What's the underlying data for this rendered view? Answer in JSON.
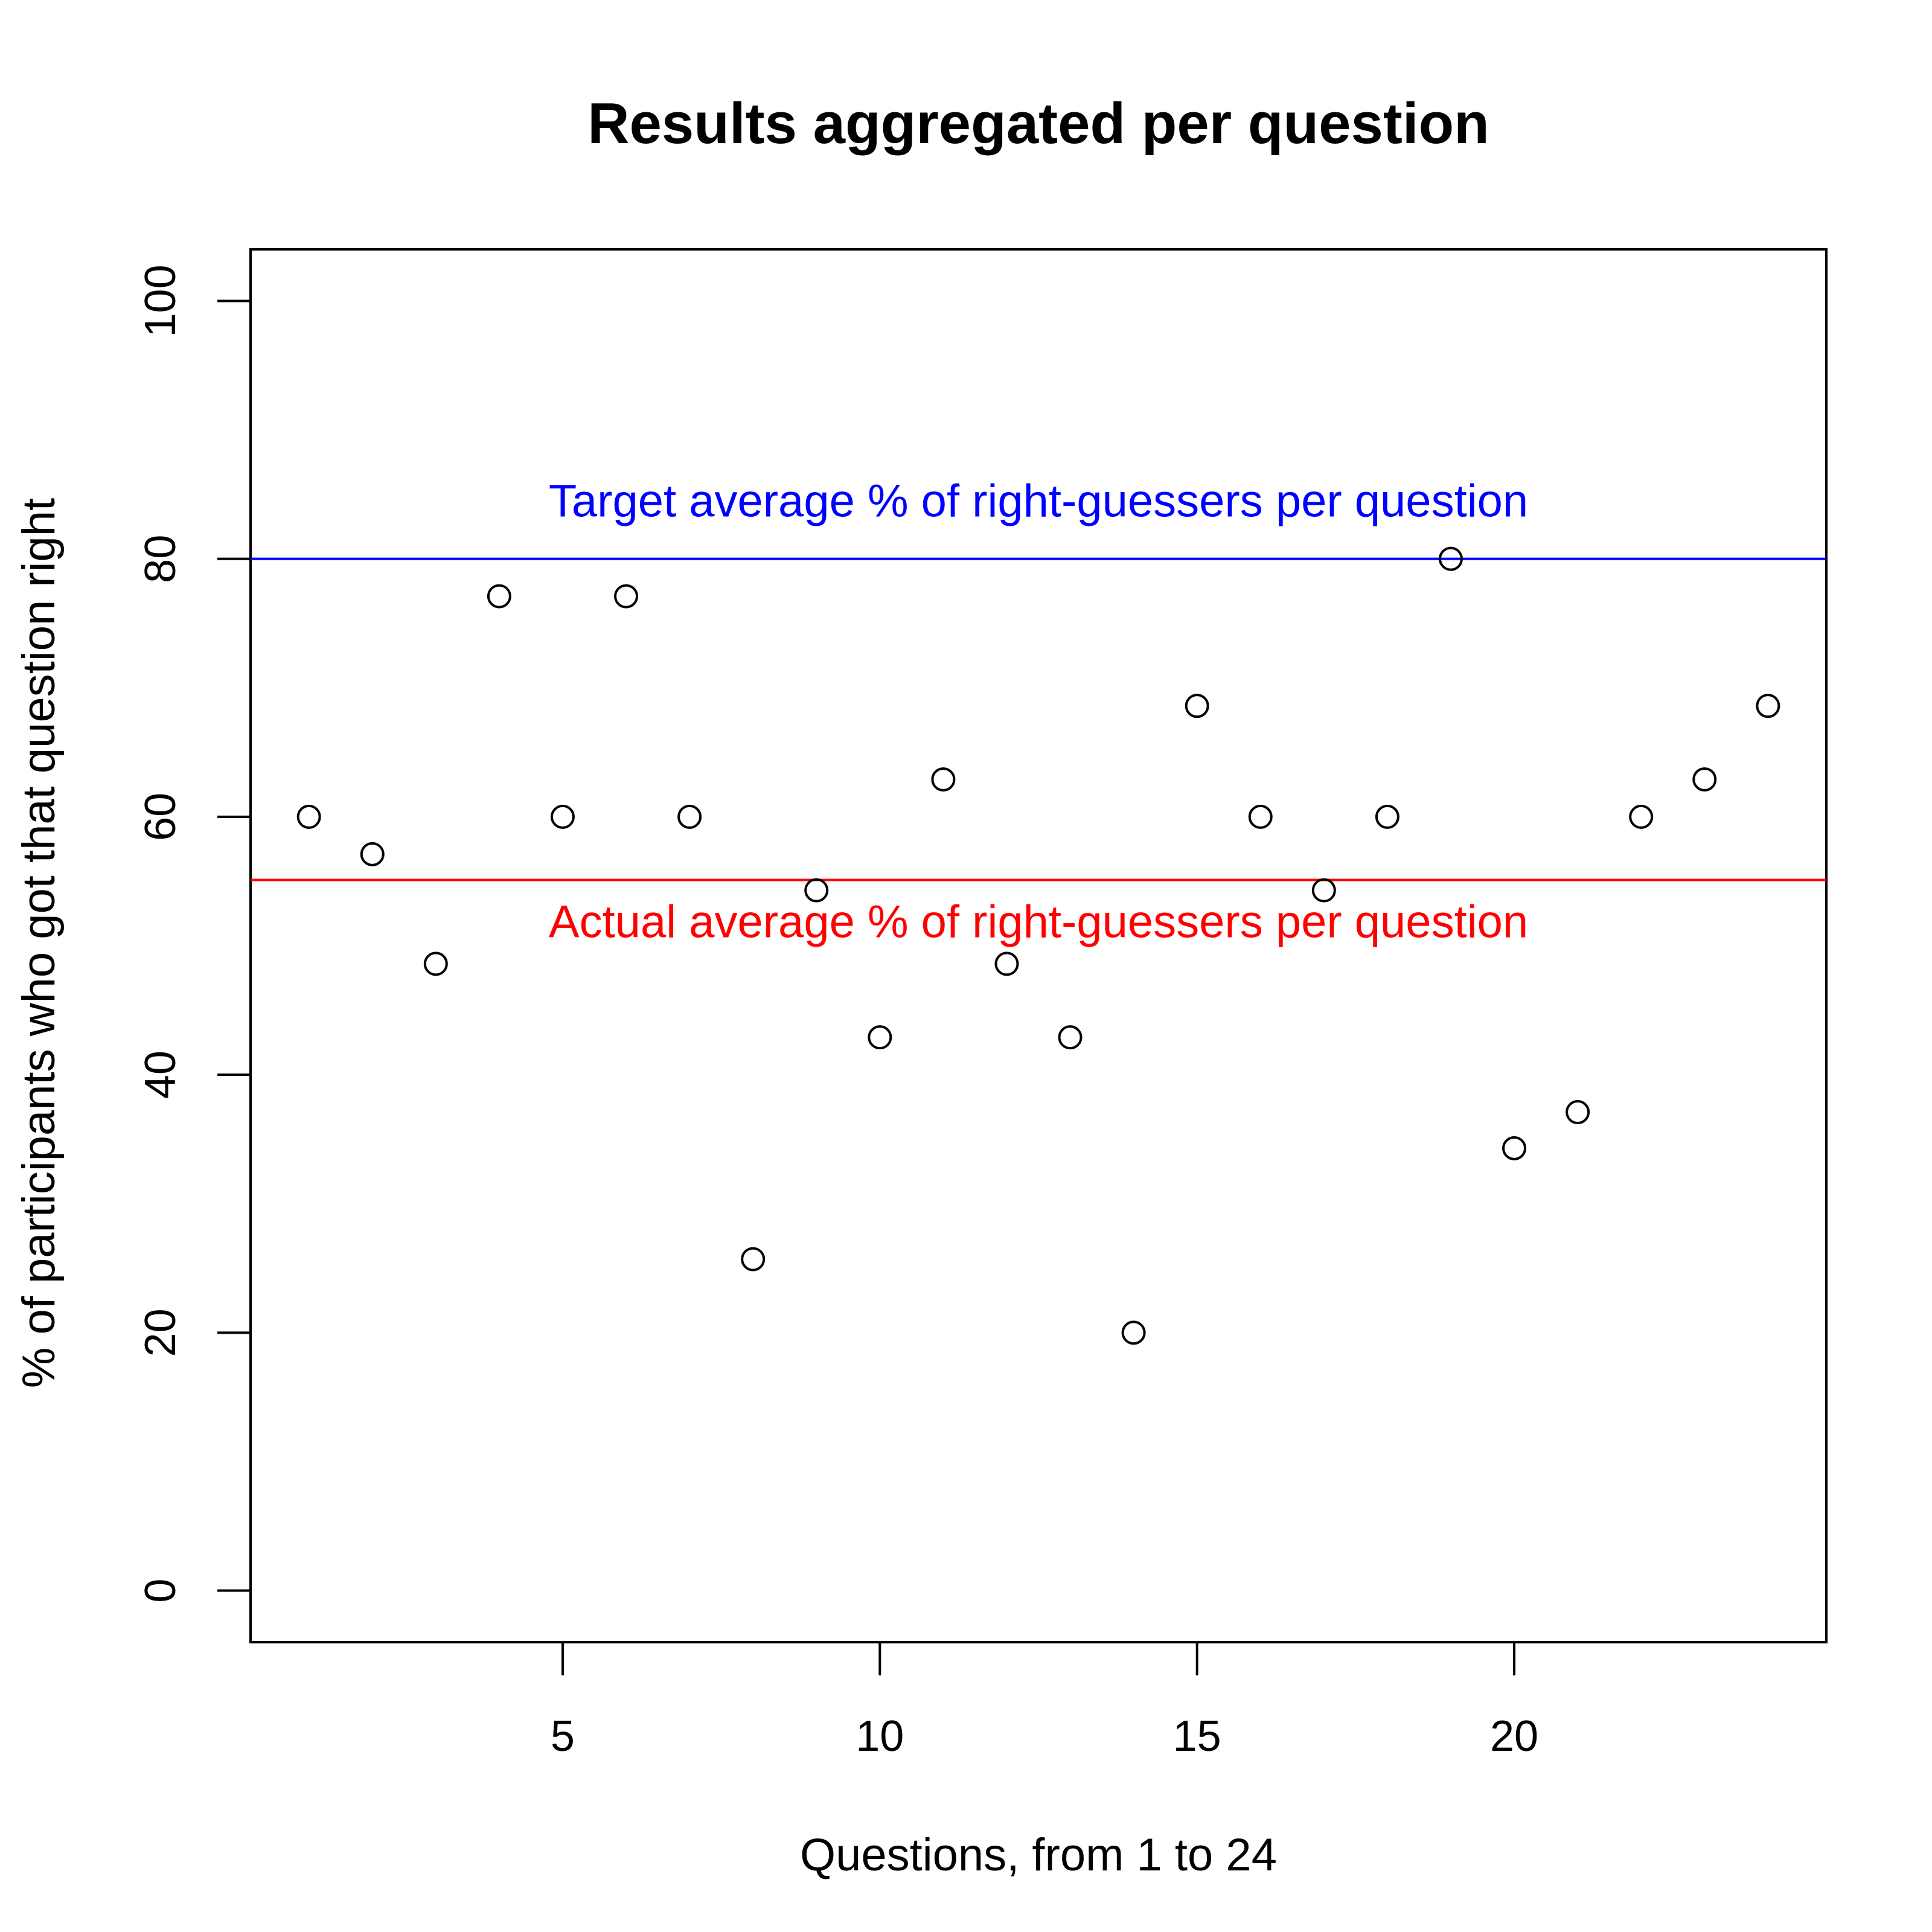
{
  "chart_data": {
    "type": "scatter",
    "title": "Results aggregated per question",
    "xlabel": "Questions, from 1 to 24",
    "ylabel": "% of participants who got that question right",
    "xlim": [
      0.08,
      24.92
    ],
    "ylim": [
      -4,
      104
    ],
    "x_ticks": [
      5,
      10,
      15,
      20
    ],
    "y_ticks": [
      0,
      20,
      40,
      60,
      80,
      100
    ],
    "grid": false,
    "point_style": "open-circle",
    "series": [
      {
        "x": [
          1,
          2,
          3,
          4,
          5,
          6,
          7,
          8,
          9,
          10,
          11,
          12,
          13,
          14,
          15,
          16,
          17,
          18,
          19,
          20,
          21,
          22,
          23,
          24
        ],
        "y": [
          60,
          57.1,
          48.6,
          77.1,
          60,
          77.1,
          60,
          25.7,
          54.3,
          42.9,
          62.9,
          48.6,
          42.9,
          20,
          68.6,
          60,
          54.3,
          60,
          80,
          34.3,
          37.1,
          60,
          62.9,
          68.6
        ]
      }
    ],
    "reference_lines": [
      {
        "label": "Target average % of right-guessers per question",
        "y": 80,
        "color": "#0000ff",
        "label_position": "above"
      },
      {
        "label": "Actual average % of right-guessers per question",
        "y": 55.1,
        "color": "#ff0000",
        "label_position": "below"
      }
    ]
  }
}
